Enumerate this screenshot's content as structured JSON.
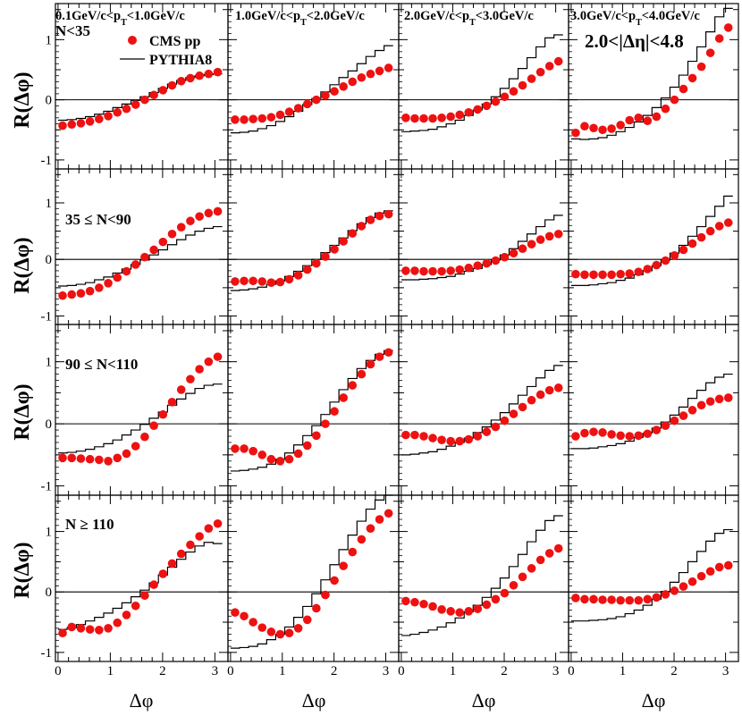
{
  "chart_data": {
    "type": "scatter",
    "layout": "4x4 grid of panels, shared axes",
    "xlabel": "Δφ",
    "ylabel": "R(Δφ)",
    "xlim": [
      -0.05,
      3.25
    ],
    "ylim": [
      -1.15,
      1.6
    ],
    "xticks": [
      0,
      1,
      2,
      3
    ],
    "yticks": [
      -1,
      0,
      1
    ],
    "series_names": [
      "CMS pp",
      "PYTHIA8"
    ],
    "series_styles": {
      "CMS pp": "red filled circles",
      "PYTHIA8": "black step histogram"
    },
    "colors": {
      "points": "#ee1111",
      "line": "#000000"
    },
    "pt_bins": [
      "0.1GeV/c<p_T<1.0GeV/c",
      "1.0GeV/c<p_T<2.0GeV/c",
      "2.0GeV/c<p_T<3.0GeV/c",
      "3.0GeV/c<p_T<4.0GeV/c"
    ],
    "multiplicity_bins": [
      "N<35",
      "35 ≤ N<90",
      "90 ≤ N<110",
      "N ≥ 110"
    ],
    "eta_label": "2.0<|Δη|<4.8",
    "panels": [
      [
        {
          "cms": [
            -0.43,
            -0.41,
            -0.39,
            -0.36,
            -0.32,
            -0.27,
            -0.21,
            -0.15,
            -0.08,
            0.0,
            0.08,
            0.16,
            0.24,
            0.31,
            0.36,
            0.4,
            0.43,
            0.46
          ],
          "pythia": [
            -0.34,
            -0.33,
            -0.31,
            -0.28,
            -0.24,
            -0.19,
            -0.13,
            -0.07,
            -0.01,
            0.05,
            0.12,
            0.19,
            0.26,
            0.32,
            0.37,
            0.4,
            0.42,
            0.43
          ]
        },
        {
          "cms": [
            -0.33,
            -0.33,
            -0.32,
            -0.31,
            -0.29,
            -0.25,
            -0.2,
            -0.14,
            -0.07,
            0.0,
            0.07,
            0.14,
            0.22,
            0.3,
            0.37,
            0.43,
            0.48,
            0.53
          ],
          "pythia": [
            -0.55,
            -0.54,
            -0.52,
            -0.48,
            -0.43,
            -0.36,
            -0.28,
            -0.19,
            -0.08,
            0.02,
            0.13,
            0.25,
            0.37,
            0.48,
            0.6,
            0.72,
            0.82,
            0.9
          ]
        },
        {
          "cms": [
            -0.3,
            -0.31,
            -0.31,
            -0.31,
            -0.3,
            -0.28,
            -0.25,
            -0.21,
            -0.16,
            -0.1,
            -0.03,
            0.05,
            0.14,
            0.24,
            0.35,
            0.46,
            0.56,
            0.64
          ],
          "pythia": [
            -0.53,
            -0.52,
            -0.51,
            -0.49,
            -0.45,
            -0.4,
            -0.34,
            -0.26,
            -0.17,
            -0.07,
            0.05,
            0.19,
            0.35,
            0.52,
            0.7,
            0.88,
            1.03,
            1.08
          ]
        },
        {
          "cms": [
            -0.55,
            -0.44,
            -0.47,
            -0.5,
            -0.48,
            -0.42,
            -0.34,
            -0.3,
            -0.35,
            -0.28,
            -0.15,
            0.0,
            0.18,
            0.36,
            0.55,
            0.78,
            1.02,
            1.2
          ],
          "pythia": [
            -0.65,
            -0.66,
            -0.65,
            -0.63,
            -0.59,
            -0.53,
            -0.46,
            -0.37,
            -0.26,
            -0.13,
            0.03,
            0.21,
            0.41,
            0.64,
            0.88,
            1.13,
            1.38,
            1.52
          ]
        }
      ],
      [
        {
          "cms": [
            -0.64,
            -0.62,
            -0.6,
            -0.56,
            -0.5,
            -0.42,
            -0.32,
            -0.21,
            -0.09,
            0.04,
            0.17,
            0.31,
            0.45,
            0.57,
            0.68,
            0.76,
            0.82,
            0.85
          ],
          "pythia": [
            -0.47,
            -0.46,
            -0.44,
            -0.41,
            -0.36,
            -0.31,
            -0.24,
            -0.17,
            -0.09,
            -0.01,
            0.08,
            0.17,
            0.26,
            0.35,
            0.43,
            0.5,
            0.55,
            0.58
          ]
        },
        {
          "cms": [
            -0.39,
            -0.38,
            -0.38,
            -0.39,
            -0.41,
            -0.4,
            -0.35,
            -0.28,
            -0.18,
            -0.07,
            0.05,
            0.18,
            0.32,
            0.46,
            0.59,
            0.7,
            0.77,
            0.8
          ],
          "pythia": [
            -0.55,
            -0.54,
            -0.52,
            -0.49,
            -0.44,
            -0.38,
            -0.3,
            -0.21,
            -0.11,
            0.0,
            0.12,
            0.25,
            0.38,
            0.51,
            0.63,
            0.74,
            0.82,
            0.86
          ]
        },
        {
          "cms": [
            -0.2,
            -0.2,
            -0.21,
            -0.21,
            -0.21,
            -0.2,
            -0.18,
            -0.15,
            -0.11,
            -0.07,
            -0.02,
            0.04,
            0.11,
            0.19,
            0.27,
            0.35,
            0.41,
            0.45
          ],
          "pythia": [
            -0.36,
            -0.36,
            -0.35,
            -0.34,
            -0.32,
            -0.3,
            -0.26,
            -0.21,
            -0.16,
            -0.09,
            -0.01,
            0.08,
            0.19,
            0.32,
            0.45,
            0.58,
            0.7,
            0.78
          ]
        },
        {
          "cms": [
            -0.26,
            -0.27,
            -0.27,
            -0.27,
            -0.27,
            -0.26,
            -0.25,
            -0.22,
            -0.17,
            -0.1,
            -0.02,
            0.07,
            0.17,
            0.28,
            0.39,
            0.5,
            0.59,
            0.65
          ],
          "pythia": [
            -0.46,
            -0.46,
            -0.45,
            -0.43,
            -0.41,
            -0.37,
            -0.33,
            -0.27,
            -0.2,
            -0.11,
            -0.01,
            0.11,
            0.25,
            0.41,
            0.58,
            0.76,
            0.94,
            1.12
          ]
        }
      ],
      [
        {
          "cms": [
            -0.55,
            -0.55,
            -0.56,
            -0.57,
            -0.58,
            -0.6,
            -0.55,
            -0.48,
            -0.36,
            -0.21,
            -0.03,
            0.15,
            0.35,
            0.55,
            0.72,
            0.88,
            1.0,
            1.08
          ],
          "pythia": [
            -0.47,
            -0.46,
            -0.44,
            -0.41,
            -0.37,
            -0.32,
            -0.26,
            -0.18,
            -0.1,
            -0.01,
            0.09,
            0.19,
            0.3,
            0.4,
            0.49,
            0.57,
            0.62,
            0.64
          ]
        },
        {
          "cms": [
            -0.4,
            -0.4,
            -0.44,
            -0.5,
            -0.57,
            -0.6,
            -0.57,
            -0.48,
            -0.35,
            -0.19,
            0.0,
            0.2,
            0.42,
            0.62,
            0.8,
            0.96,
            1.08,
            1.15
          ],
          "pythia": [
            -0.76,
            -0.75,
            -0.73,
            -0.7,
            -0.65,
            -0.57,
            -0.47,
            -0.34,
            -0.19,
            -0.03,
            0.15,
            0.35,
            0.55,
            0.73,
            0.89,
            1.02,
            1.12,
            1.18
          ]
        },
        {
          "cms": [
            -0.18,
            -0.18,
            -0.2,
            -0.23,
            -0.26,
            -0.28,
            -0.28,
            -0.25,
            -0.2,
            -0.13,
            -0.05,
            0.05,
            0.16,
            0.27,
            0.38,
            0.47,
            0.54,
            0.58
          ],
          "pythia": [
            -0.5,
            -0.49,
            -0.47,
            -0.45,
            -0.41,
            -0.36,
            -0.3,
            -0.23,
            -0.14,
            -0.05,
            0.06,
            0.18,
            0.32,
            0.46,
            0.6,
            0.74,
            0.86,
            0.94
          ]
        },
        {
          "cms": [
            -0.2,
            -0.15,
            -0.13,
            -0.14,
            -0.17,
            -0.19,
            -0.2,
            -0.19,
            -0.16,
            -0.1,
            -0.03,
            0.05,
            0.13,
            0.22,
            0.3,
            0.36,
            0.4,
            0.42
          ],
          "pythia": [
            -0.4,
            -0.4,
            -0.39,
            -0.37,
            -0.35,
            -0.32,
            -0.28,
            -0.22,
            -0.15,
            -0.07,
            0.03,
            0.14,
            0.27,
            0.41,
            0.54,
            0.66,
            0.75,
            0.8
          ]
        }
      ],
      [
        {
          "cms": [
            -0.68,
            -0.58,
            -0.6,
            -0.62,
            -0.63,
            -0.6,
            -0.51,
            -0.38,
            -0.23,
            -0.06,
            0.12,
            0.3,
            0.47,
            0.63,
            0.78,
            0.92,
            1.05,
            1.13
          ],
          "pythia": [
            -0.62,
            -0.59,
            -0.54,
            -0.48,
            -0.42,
            -0.35,
            -0.27,
            -0.18,
            -0.08,
            0.03,
            0.15,
            0.28,
            0.41,
            0.54,
            0.66,
            0.76,
            0.82,
            0.8
          ]
        },
        {
          "cms": [
            -0.34,
            -0.4,
            -0.5,
            -0.59,
            -0.66,
            -0.7,
            -0.68,
            -0.6,
            -0.46,
            -0.27,
            -0.05,
            0.19,
            0.43,
            0.66,
            0.87,
            1.05,
            1.2,
            1.3
          ],
          "pythia": [
            -0.93,
            -0.92,
            -0.9,
            -0.86,
            -0.79,
            -0.7,
            -0.58,
            -0.42,
            -0.24,
            -0.03,
            0.2,
            0.45,
            0.7,
            0.94,
            1.17,
            1.37,
            1.52,
            1.6
          ]
        },
        {
          "cms": [
            -0.15,
            -0.17,
            -0.2,
            -0.24,
            -0.29,
            -0.32,
            -0.34,
            -0.32,
            -0.28,
            -0.21,
            -0.12,
            -0.02,
            0.11,
            0.25,
            0.39,
            0.53,
            0.64,
            0.72
          ],
          "pythia": [
            -0.72,
            -0.7,
            -0.67,
            -0.63,
            -0.58,
            -0.51,
            -0.43,
            -0.33,
            -0.22,
            -0.09,
            0.06,
            0.23,
            0.42,
            0.62,
            0.83,
            1.02,
            1.18,
            1.26
          ]
        },
        {
          "cms": [
            -0.1,
            -0.12,
            -0.12,
            -0.13,
            -0.13,
            -0.14,
            -0.14,
            -0.14,
            -0.12,
            -0.09,
            -0.04,
            0.02,
            0.09,
            0.17,
            0.26,
            0.34,
            0.41,
            0.44
          ],
          "pythia": [
            -0.48,
            -0.48,
            -0.47,
            -0.46,
            -0.44,
            -0.41,
            -0.36,
            -0.3,
            -0.22,
            -0.12,
            0.01,
            0.16,
            0.32,
            0.5,
            0.67,
            0.84,
            0.97,
            1.03
          ]
        }
      ]
    ]
  }
}
